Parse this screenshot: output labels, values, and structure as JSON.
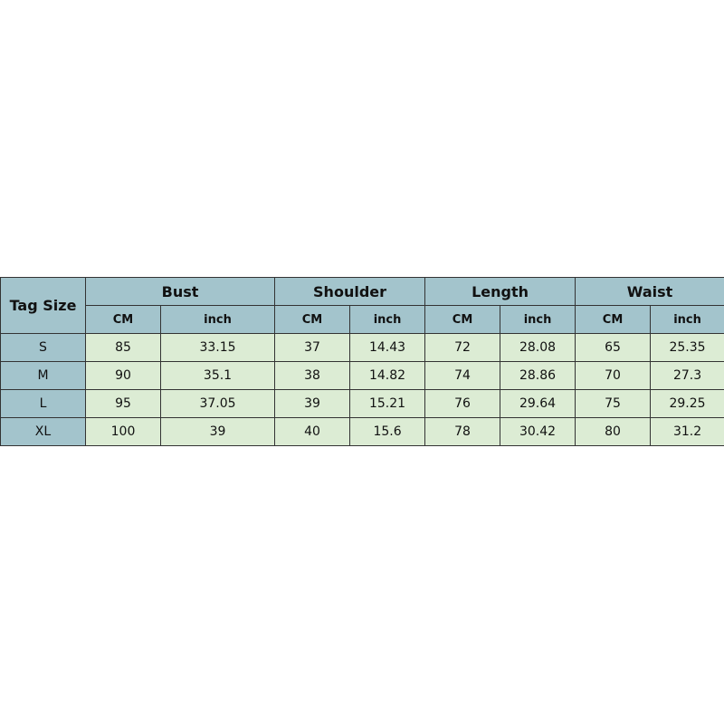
{
  "table": {
    "corner": "Tag Size",
    "groups": [
      "Bust",
      "Shoulder",
      "Length",
      "Waist"
    ],
    "units": [
      "CM",
      "inch"
    ],
    "rows": [
      {
        "size": "S",
        "values": [
          "85",
          "33.15",
          "37",
          "14.43",
          "72",
          "28.08",
          "65",
          "25.35"
        ]
      },
      {
        "size": "M",
        "values": [
          "90",
          "35.1",
          "38",
          "14.82",
          "74",
          "28.86",
          "70",
          "27.3"
        ]
      },
      {
        "size": "L",
        "values": [
          "95",
          "37.05",
          "39",
          "15.21",
          "76",
          "29.64",
          "75",
          "29.25"
        ]
      },
      {
        "size": "XL",
        "values": [
          "100",
          "39",
          "40",
          "15.6",
          "78",
          "30.42",
          "80",
          "31.2"
        ]
      }
    ]
  },
  "colors": {
    "header": "#a3c4cc",
    "body": "#dcecd4"
  }
}
